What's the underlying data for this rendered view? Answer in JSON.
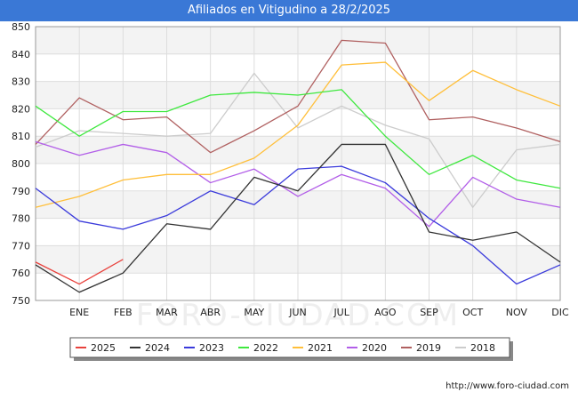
{
  "header": {
    "title": "Afiliados en Vitigudino a 28/2/2025"
  },
  "footer": {
    "url": "http://www.foro-ciudad.com"
  },
  "watermark": "FORO-CIUDAD.COM",
  "chart_data": {
    "type": "line",
    "title": "Afiliados en Vitigudino a 28/2/2025",
    "xlabel": "",
    "ylabel": "",
    "x_ticks": [
      "",
      "ENE",
      "FEB",
      "MAR",
      "ABR",
      "MAY",
      "JUN",
      "JUL",
      "AGO",
      "SEP",
      "OCT",
      "NOV",
      "DIC"
    ],
    "y_ticks": [
      750,
      760,
      770,
      780,
      790,
      800,
      810,
      820,
      830,
      840,
      850
    ],
    "ylim": [
      750,
      850
    ],
    "grid": true,
    "legend_position": "bottom",
    "series": [
      {
        "name": "2025",
        "color": "#e8413c",
        "values": [
          764,
          756,
          765
        ]
      },
      {
        "name": "2024",
        "color": "#333333",
        "values": [
          763,
          753,
          760,
          778,
          776,
          795,
          790,
          807,
          807,
          775,
          772,
          775,
          764
        ]
      },
      {
        "name": "2023",
        "color": "#3a3adb",
        "values": [
          791,
          779,
          776,
          781,
          790,
          785,
          798,
          799,
          793,
          780,
          770,
          756,
          763
        ]
      },
      {
        "name": "2022",
        "color": "#3ee83e",
        "values": [
          821,
          810,
          819,
          819,
          825,
          826,
          825,
          827,
          810,
          796,
          803,
          794,
          791
        ]
      },
      {
        "name": "2021",
        "color": "#ffbf3a",
        "values": [
          784,
          788,
          794,
          796,
          796,
          802,
          814,
          836,
          837,
          823,
          834,
          827,
          821
        ]
      },
      {
        "name": "2020",
        "color": "#b25ee8",
        "values": [
          808,
          803,
          807,
          804,
          793,
          798,
          788,
          796,
          791,
          777,
          795,
          787,
          784
        ]
      },
      {
        "name": "2019",
        "color": "#b06060",
        "values": [
          807,
          824,
          816,
          817,
          804,
          812,
          821,
          845,
          844,
          816,
          817,
          813,
          808
        ]
      },
      {
        "name": "2018",
        "color": "#cccccc",
        "values": [
          806,
          812,
          811,
          810,
          811,
          833,
          813,
          821,
          814,
          809,
          784,
          805,
          807
        ]
      }
    ]
  }
}
